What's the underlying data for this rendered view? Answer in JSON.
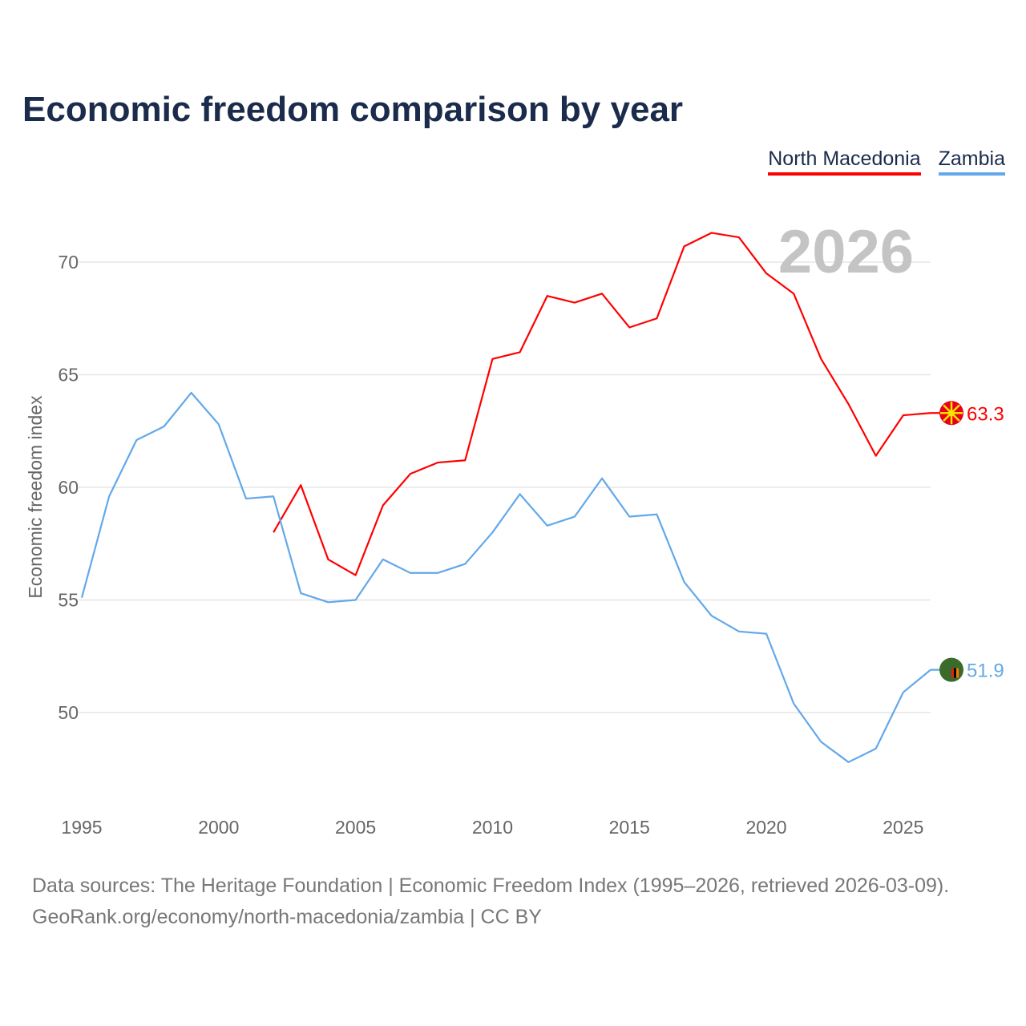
{
  "chart_data": {
    "type": "line",
    "title": "Economic freedom comparison by year",
    "ylabel": "Economic freedom index",
    "xlabel": "",
    "watermark_year": "2026",
    "xlim": [
      1995,
      2026
    ],
    "ylim": [
      46,
      72.5
    ],
    "x_ticks": [
      1995,
      2000,
      2005,
      2010,
      2015,
      2020,
      2025
    ],
    "y_ticks": [
      50,
      55,
      60,
      65,
      70
    ],
    "grid": true,
    "legend_position": "top-right",
    "series": [
      {
        "name": "North Macedonia",
        "color": "#ff0000",
        "end_label": "63.3",
        "x": [
          2002,
          2003,
          2004,
          2005,
          2006,
          2007,
          2008,
          2009,
          2010,
          2011,
          2012,
          2013,
          2014,
          2015,
          2016,
          2017,
          2018,
          2019,
          2020,
          2021,
          2022,
          2023,
          2024,
          2025,
          2026
        ],
        "y": [
          58.0,
          60.1,
          56.8,
          56.1,
          59.2,
          60.6,
          61.1,
          61.2,
          65.7,
          66.0,
          68.5,
          68.2,
          68.6,
          67.1,
          67.5,
          70.7,
          71.3,
          71.1,
          69.5,
          68.6,
          65.7,
          63.7,
          61.4,
          63.2,
          63.3
        ]
      },
      {
        "name": "Zambia",
        "color": "#62a8ea",
        "end_label": "51.9",
        "x": [
          1995,
          1996,
          1997,
          1998,
          1999,
          2000,
          2001,
          2002,
          2003,
          2004,
          2005,
          2006,
          2007,
          2008,
          2009,
          2010,
          2011,
          2012,
          2013,
          2014,
          2015,
          2016,
          2017,
          2018,
          2019,
          2020,
          2021,
          2022,
          2023,
          2024,
          2025,
          2026
        ],
        "y": [
          55.1,
          59.6,
          62.1,
          62.7,
          64.2,
          62.8,
          59.5,
          59.6,
          55.3,
          54.9,
          55.0,
          56.8,
          56.2,
          56.2,
          56.6,
          58.0,
          59.7,
          58.3,
          58.7,
          60.4,
          58.7,
          58.8,
          55.8,
          54.3,
          53.6,
          53.5,
          50.4,
          48.7,
          47.8,
          48.4,
          50.9,
          51.9
        ]
      }
    ]
  },
  "footer": {
    "line1": "Data sources: The Heritage Foundation | Economic Freedom Index (1995–2026, retrieved 2026-03-09).",
    "line2": "GeoRank.org/economy/north-macedonia/zambia | CC BY"
  }
}
